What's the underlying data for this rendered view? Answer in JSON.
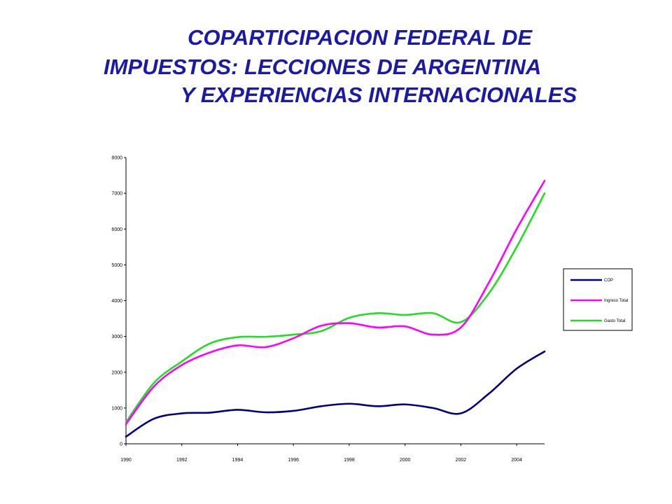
{
  "title": {
    "line1": "COPARTICIPACION FEDERAL DE",
    "line2": "IMPUESTOS: LECCIONES DE ARGENTINA",
    "line3": "Y EXPERIENCIAS INTERNACIONALES"
  },
  "colors": {
    "title": "#1a1aa6",
    "COP": "#000080",
    "Ingreso Total": "#ff00ff",
    "Gasto Total": "#22dd22"
  },
  "chart_data": {
    "type": "line",
    "title": "",
    "xlabel": "",
    "ylabel": "",
    "x": [
      1990,
      1991,
      1992,
      1993,
      1994,
      1995,
      1996,
      1997,
      1998,
      1999,
      2000,
      2001,
      2002,
      2003,
      2004,
      2005
    ],
    "xlim": [
      1990,
      2005
    ],
    "ylim": [
      0,
      8000
    ],
    "yticks": [
      0,
      1000,
      2000,
      3000,
      4000,
      5000,
      6000,
      7000,
      8000
    ],
    "ytick_labels": [
      "0",
      "1000",
      "2000",
      "3000",
      "4000",
      "5000",
      "6000",
      "7000",
      "8000"
    ],
    "xtick_values": [
      1990,
      1992,
      1994,
      1996,
      1998,
      2000,
      2002,
      2004
    ],
    "xtick_labels": [
      "1990",
      "1992",
      "1994",
      "1996",
      "1998",
      "2000",
      "2002",
      "2004"
    ],
    "grid": false,
    "legend": "right",
    "series": [
      {
        "name": "COP",
        "values": [
          200,
          700,
          850,
          870,
          950,
          880,
          920,
          1050,
          1120,
          1050,
          1100,
          1000,
          850,
          1400,
          2100,
          2580
        ]
      },
      {
        "name": "Ingreso Total",
        "values": [
          550,
          1600,
          2200,
          2550,
          2750,
          2700,
          2950,
          3300,
          3370,
          3250,
          3280,
          3050,
          3250,
          4500,
          6000,
          7350
        ]
      },
      {
        "name": "Gasto Total",
        "values": [
          600,
          1700,
          2300,
          2800,
          2980,
          2990,
          3050,
          3150,
          3520,
          3650,
          3600,
          3650,
          3400,
          4200,
          5500,
          7000
        ]
      }
    ]
  }
}
